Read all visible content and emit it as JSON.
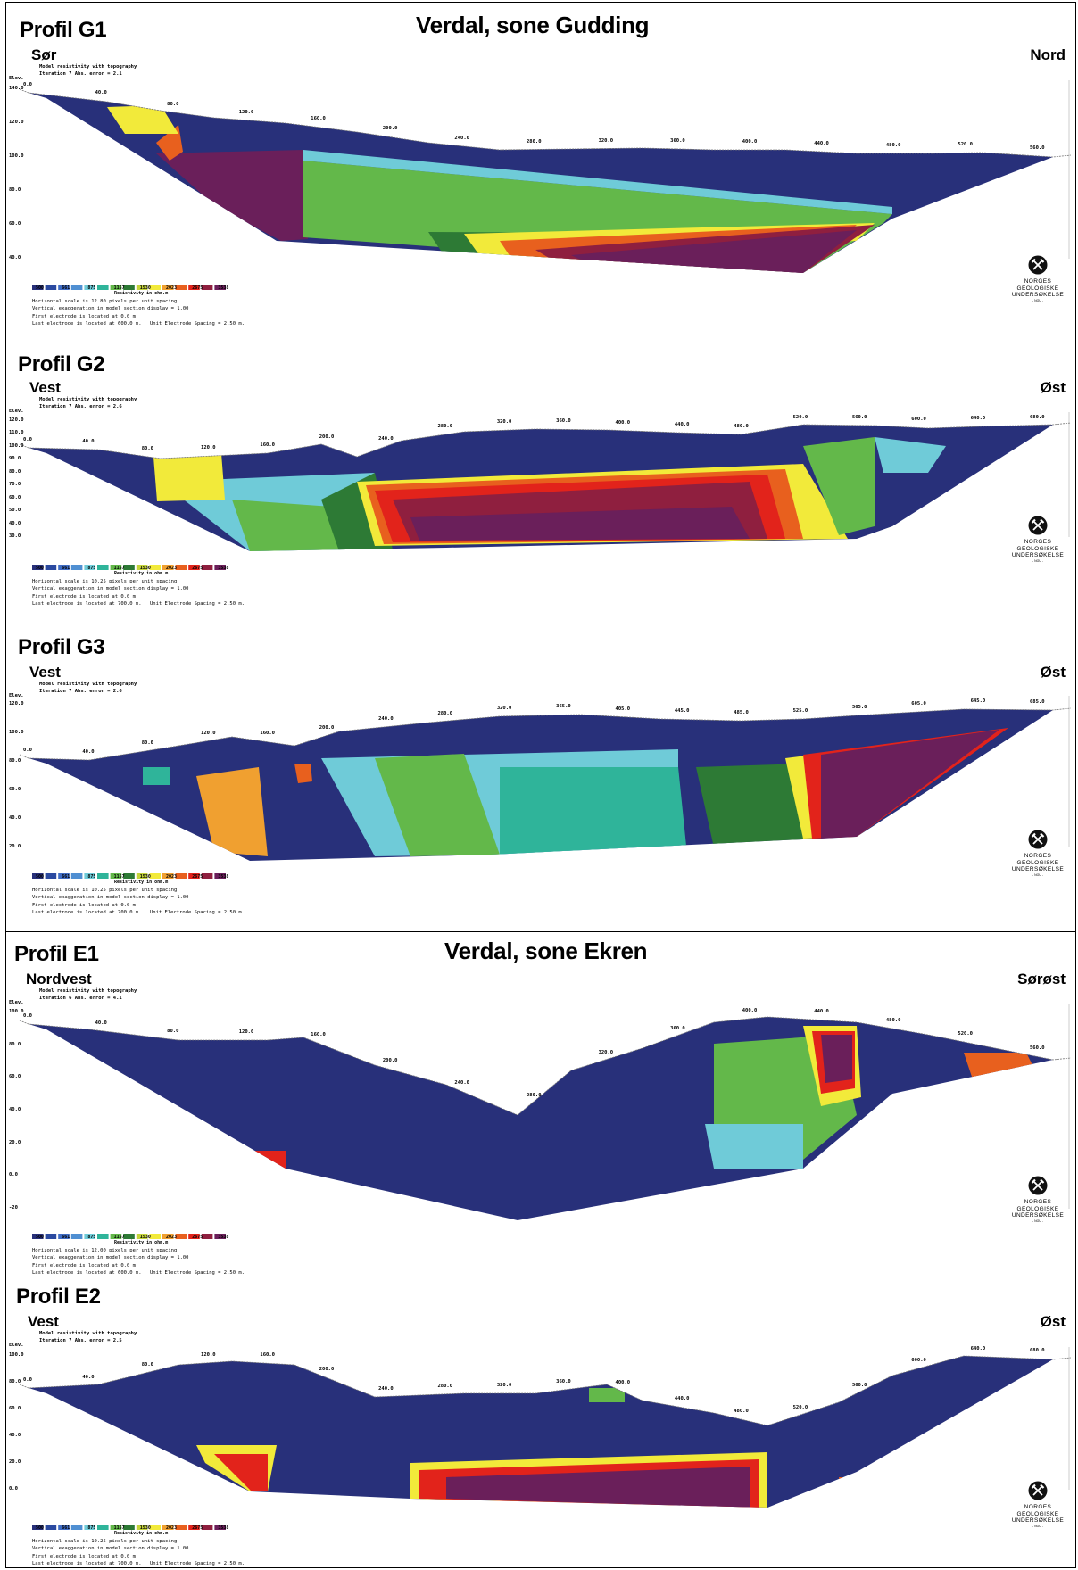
{
  "sheets": {
    "gudding_title": "Verdal, sone Gudding",
    "ekren_title": "Verdal, sone Ekren"
  },
  "colors": {
    "scale": [
      "#28307a",
      "#2b4aa0",
      "#3f6cc4",
      "#4f8fd2",
      "#6fcbd8",
      "#2fb49a",
      "#63b84a",
      "#2d7a35",
      "#c5d43a",
      "#f2ea3a",
      "#f0a030",
      "#e8601e",
      "#e2231b",
      "#8f1f3f",
      "#6a1f5a"
    ],
    "background": "#28307a",
    "topography": "#777777"
  },
  "icons": {
    "logo": "ngu-hammer-pick-logo"
  },
  "logo": {
    "line1": "NORGES",
    "line2": "GEOLOGISKE",
    "line3": "UNDERSØKELSE",
    "sub": "- NGU -"
  },
  "legend": {
    "values": [
      "500",
      "661",
      "875",
      "1157",
      "1530",
      "2023",
      "2675",
      "3538"
    ],
    "unit": "Resistivity in ohm.m"
  },
  "common": {
    "model": "Model resistivity with topography",
    "elev": "Elev.",
    "first_electrode": "First electrode is located at  0.0  m.",
    "vertical": "Vertical exaggeration in model section display =  1.00"
  },
  "profiles": [
    {
      "id": "G1",
      "title": "Profil G1",
      "left": "Sør",
      "right": "Nord",
      "iteration": "Iteration 7 Abs. error = 2.1",
      "elev_ticks": [
        "140.0",
        "120.0",
        "100.0",
        "80.0",
        "60.0",
        "40.0"
      ],
      "dist_ticks": [
        "0.0",
        "40.0",
        "80.0",
        "120.0",
        "160.0",
        "200.0",
        "240.0",
        "280.0",
        "320.0",
        "360.0",
        "400.0",
        "440.0",
        "480.0",
        "520.0",
        "560.0"
      ],
      "horizontal": "Horizontal scale is 12.80 pixels per unit spacing",
      "last_electrode": "Last electrode is located at  600.0 m.",
      "spacing": "Unit Electrode Spacing = 2.50 m."
    },
    {
      "id": "G2",
      "title": "Profil G2",
      "left": "Vest",
      "right": "Øst",
      "iteration": "Iteration 7 Abs. error = 2.6",
      "elev_ticks": [
        "120.0",
        "110.0",
        "100.0",
        "90.0",
        "80.0",
        "70.0",
        "60.0",
        "50.0",
        "40.0",
        "30.0"
      ],
      "dist_ticks": [
        "0.0",
        "40.0",
        "80.0",
        "120.0",
        "160.0",
        "200.0",
        "240.0",
        "280.0",
        "320.0",
        "360.0",
        "400.0",
        "440.0",
        "480.0",
        "520.0",
        "560.0",
        "600.0",
        "640.0",
        "680.0"
      ],
      "horizontal": "Horizontal scale is 10.25 pixels per unit spacing",
      "last_electrode": "Last electrode is located at  700.0 m.",
      "spacing": "Unit Electrode Spacing = 2.50 m."
    },
    {
      "id": "G3",
      "title": "Profil G3",
      "left": "Vest",
      "right": "Øst",
      "iteration": "Iteration 7 Abs. error = 2.6",
      "elev_ticks": [
        "120.0",
        "100.0",
        "80.0",
        "60.0",
        "40.0",
        "20.0"
      ],
      "dist_ticks": [
        "0.0",
        "40.0",
        "80.0",
        "120.0",
        "160.0",
        "200.0",
        "240.0",
        "280.0",
        "320.0",
        "365.0",
        "405.0",
        "445.0",
        "485.0",
        "525.0",
        "565.0",
        "605.0",
        "645.0",
        "685.0"
      ],
      "horizontal": "Horizontal scale is 10.25 pixels per unit spacing",
      "last_electrode": "Last electrode is located at  700.0 m.",
      "spacing": "Unit Electrode Spacing = 2.50 m."
    },
    {
      "id": "E1",
      "title": "Profil E1",
      "left": "Nordvest",
      "right": "Sørøst",
      "iteration": "Iteration 6 Abs. error = 4.1",
      "elev_ticks": [
        "100.0",
        "80.0",
        "60.0",
        "40.0",
        "20.0",
        "0.0",
        "-20"
      ],
      "dist_ticks": [
        "0.0",
        "40.0",
        "80.0",
        "120.0",
        "160.0",
        "200.0",
        "240.0",
        "280.0",
        "320.0",
        "360.0",
        "400.0",
        "440.0",
        "480.0",
        "520.0",
        "560.0"
      ],
      "horizontal": "Horizontal scale is 12.00 pixels per unit spacing",
      "last_electrode": "Last electrode is located at  600.0 m.",
      "spacing": "Unit Electrode Spacing = 2.50 m."
    },
    {
      "id": "E2",
      "title": "Profil E2",
      "left": "Vest",
      "right": "Øst",
      "iteration": "Iteration 7 Abs. error = 2.5",
      "elev_ticks": [
        "100.0",
        "80.0",
        "60.0",
        "40.0",
        "20.0",
        "0.0"
      ],
      "dist_ticks": [
        "0.0",
        "40.0",
        "80.0",
        "120.0",
        "160.0",
        "200.0",
        "240.0",
        "280.0",
        "320.0",
        "360.0",
        "400.0",
        "440.0",
        "480.0",
        "520.0",
        "560.0",
        "600.0",
        "640.0",
        "680.0"
      ],
      "horizontal": "Horizontal scale is 10.25 pixels per unit spacing",
      "last_electrode": "Last electrode is located at  700.0 m.",
      "spacing": "Unit Electrode Spacing = 2.50 m."
    }
  ]
}
